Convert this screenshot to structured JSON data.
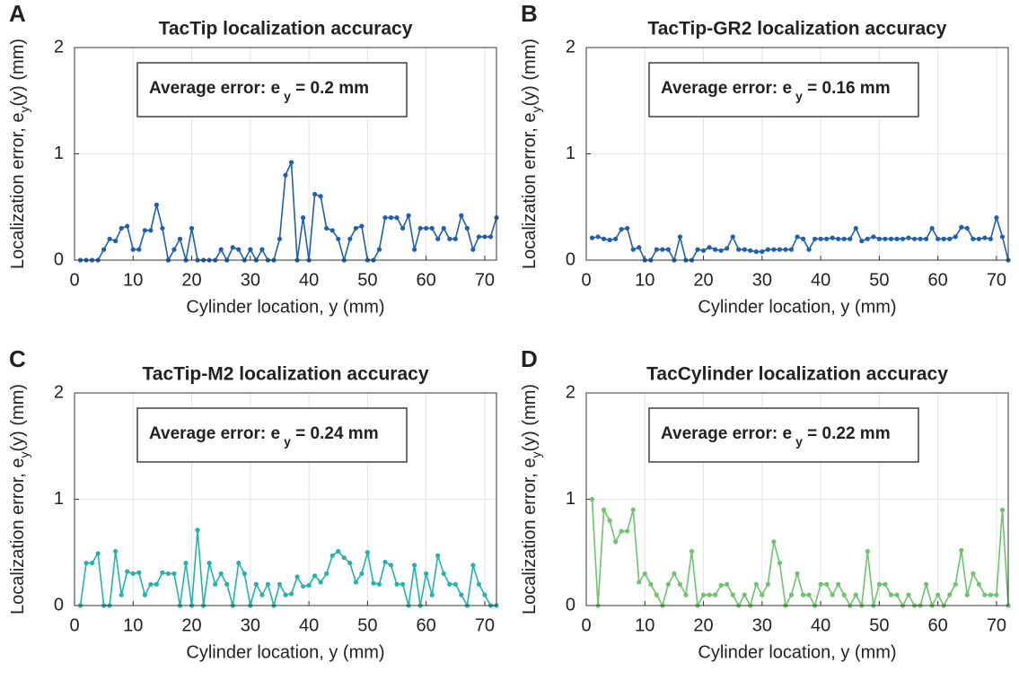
{
  "chart_data": [
    {
      "type": "line",
      "panel_label": "A",
      "title": "TacTip localization accuracy",
      "xlabel": "Cylinder location, y (mm)",
      "ylabel": [
        "Localization error, e",
        "y",
        "(y) (mm)"
      ],
      "annotation": [
        "Average error: e",
        "y",
        " = 0.2 mm"
      ],
      "xlim": [
        0,
        72
      ],
      "ylim": [
        0,
        2
      ],
      "xticks": [
        0,
        10,
        20,
        30,
        40,
        50,
        60,
        70
      ],
      "yticks": [
        0,
        1,
        2
      ],
      "grid": true,
      "x": [
        1,
        2,
        3,
        4,
        5,
        6,
        7,
        8,
        9,
        10,
        11,
        12,
        13,
        14,
        15,
        16,
        17,
        18,
        19,
        20,
        21,
        22,
        23,
        24,
        25,
        26,
        27,
        28,
        29,
        30,
        31,
        32,
        33,
        34,
        35,
        36,
        37,
        38,
        39,
        40,
        41,
        42,
        43,
        44,
        45,
        46,
        47,
        48,
        49,
        50,
        51,
        52,
        53,
        54,
        55,
        56,
        57,
        58,
        59,
        60,
        61,
        62,
        63,
        64,
        65,
        66,
        67,
        68,
        69,
        70,
        71,
        72
      ],
      "series": [
        {
          "color": "#1f5fb0",
          "values": [
            0,
            0,
            0,
            0,
            0.1,
            0.2,
            0.18,
            0.3,
            0.32,
            0.1,
            0.1,
            0.28,
            0.28,
            0.52,
            0.3,
            0,
            0.1,
            0.2,
            0,
            0.3,
            0,
            0,
            0,
            0,
            0.1,
            0,
            0.12,
            0.1,
            0,
            0.1,
            0,
            0.1,
            0,
            0,
            0.2,
            0.8,
            0.92,
            0,
            0.4,
            0,
            0.62,
            0.6,
            0.3,
            0.28,
            0.2,
            0,
            0.2,
            0.3,
            0.32,
            0,
            0,
            0.1,
            0.4,
            0.4,
            0.4,
            0.3,
            0.42,
            0.1,
            0.3,
            0.3,
            0.3,
            0.2,
            0.3,
            0.2,
            0.2,
            0.42,
            0.3,
            0.1,
            0.22,
            0.22,
            0.22,
            0.4
          ]
        }
      ]
    },
    {
      "type": "line",
      "panel_label": "B",
      "title": "TacTip-GR2 localization accuracy",
      "xlabel": "Cylinder location, y (mm)",
      "ylabel": [
        "Localization error, e",
        "y",
        "(y) (mm)"
      ],
      "annotation": [
        "Average error: e",
        "y",
        " = 0.16 mm"
      ],
      "xlim": [
        0,
        72
      ],
      "ylim": [
        0,
        2
      ],
      "xticks": [
        0,
        10,
        20,
        30,
        40,
        50,
        60,
        70
      ],
      "yticks": [
        0,
        1,
        2
      ],
      "grid": true,
      "x": [
        1,
        2,
        3,
        4,
        5,
        6,
        7,
        8,
        9,
        10,
        11,
        12,
        13,
        14,
        15,
        16,
        17,
        18,
        19,
        20,
        21,
        22,
        23,
        24,
        25,
        26,
        27,
        28,
        29,
        30,
        31,
        32,
        33,
        34,
        35,
        36,
        37,
        38,
        39,
        40,
        41,
        42,
        43,
        44,
        45,
        46,
        47,
        48,
        49,
        50,
        51,
        52,
        53,
        54,
        55,
        56,
        57,
        58,
        59,
        60,
        61,
        62,
        63,
        64,
        65,
        66,
        67,
        68,
        69,
        70,
        71,
        72
      ],
      "series": [
        {
          "color": "#1f5fb0",
          "values": [
            0.21,
            0.22,
            0.2,
            0.19,
            0.2,
            0.29,
            0.3,
            0.1,
            0.12,
            0,
            0,
            0.1,
            0.1,
            0.1,
            0,
            0.22,
            0,
            0,
            0.1,
            0.09,
            0.12,
            0.1,
            0.09,
            0.11,
            0.22,
            0.1,
            0.1,
            0.09,
            0.08,
            0.08,
            0.1,
            0.1,
            0.1,
            0.1,
            0.1,
            0.22,
            0.2,
            0.1,
            0.2,
            0.2,
            0.2,
            0.21,
            0.2,
            0.2,
            0.2,
            0.3,
            0.18,
            0.2,
            0.22,
            0.2,
            0.2,
            0.2,
            0.2,
            0.2,
            0.21,
            0.2,
            0.2,
            0.2,
            0.3,
            0.2,
            0.2,
            0.2,
            0.22,
            0.31,
            0.3,
            0.2,
            0.2,
            0.21,
            0.2,
            0.4,
            0.22,
            0
          ]
        }
      ]
    },
    {
      "type": "line",
      "panel_label": "C",
      "title": "TacTip-M2 localization accuracy",
      "xlabel": "Cylinder location, y (mm)",
      "ylabel": [
        "Localization error, e",
        "y",
        "(y) (mm)"
      ],
      "annotation": [
        "Average error: e",
        "y",
        " = 0.24 mm"
      ],
      "xlim": [
        0,
        72
      ],
      "ylim": [
        0,
        2
      ],
      "xticks": [
        0,
        10,
        20,
        30,
        40,
        50,
        60,
        70
      ],
      "yticks": [
        0,
        1,
        2
      ],
      "grid": true,
      "x": [
        1,
        2,
        3,
        4,
        5,
        6,
        7,
        8,
        9,
        10,
        11,
        12,
        13,
        14,
        15,
        16,
        17,
        18,
        19,
        20,
        21,
        22,
        23,
        24,
        25,
        26,
        27,
        28,
        29,
        30,
        31,
        32,
        33,
        34,
        35,
        36,
        37,
        38,
        39,
        40,
        41,
        42,
        43,
        44,
        45,
        46,
        47,
        48,
        49,
        50,
        51,
        52,
        53,
        54,
        55,
        56,
        57,
        58,
        59,
        60,
        61,
        62,
        63,
        64,
        65,
        66,
        67,
        68,
        69,
        70,
        71,
        72
      ],
      "series": [
        {
          "color": "#22b3ad",
          "values": [
            0,
            0.4,
            0.4,
            0.49,
            0,
            0,
            0.51,
            0.1,
            0.32,
            0.3,
            0.31,
            0.1,
            0.2,
            0.2,
            0.31,
            0.3,
            0.3,
            0,
            0.4,
            0,
            0.71,
            0,
            0.4,
            0.2,
            0.3,
            0.2,
            0,
            0.4,
            0.3,
            0,
            0.2,
            0.1,
            0.2,
            0,
            0.2,
            0.1,
            0.11,
            0.27,
            0.18,
            0.19,
            0.28,
            0.22,
            0.3,
            0.47,
            0.51,
            0.45,
            0.4,
            0.22,
            0.3,
            0.5,
            0.21,
            0.2,
            0.41,
            0.38,
            0.2,
            0.2,
            0,
            0.38,
            0,
            0.3,
            0.1,
            0.47,
            0.3,
            0.2,
            0.2,
            0.1,
            0,
            0.38,
            0.2,
            0.1,
            0,
            0
          ]
        }
      ]
    },
    {
      "type": "line",
      "panel_label": "D",
      "title": "TacCylinder localization accuracy",
      "xlabel": "Cylinder location, y (mm)",
      "ylabel": [
        "Localization error, e",
        "y",
        "(y) (mm)"
      ],
      "annotation": [
        "Average error: e",
        "y",
        " = 0.22 mm"
      ],
      "xlim": [
        0,
        72
      ],
      "ylim": [
        0,
        2
      ],
      "xticks": [
        0,
        10,
        20,
        30,
        40,
        50,
        60,
        70
      ],
      "yticks": [
        0,
        1,
        2
      ],
      "grid": true,
      "x": [
        1,
        2,
        3,
        4,
        5,
        6,
        7,
        8,
        9,
        10,
        11,
        12,
        13,
        14,
        15,
        16,
        17,
        18,
        19,
        20,
        21,
        22,
        23,
        24,
        25,
        26,
        27,
        28,
        29,
        30,
        31,
        32,
        33,
        34,
        35,
        36,
        37,
        38,
        39,
        40,
        41,
        42,
        43,
        44,
        45,
        46,
        47,
        48,
        49,
        50,
        51,
        52,
        53,
        54,
        55,
        56,
        57,
        58,
        59,
        60,
        61,
        62,
        63,
        64,
        65,
        66,
        67,
        68,
        69,
        70,
        71,
        72
      ],
      "series": [
        {
          "color": "#6cc46c",
          "values": [
            1,
            0,
            0.9,
            0.8,
            0.6,
            0.7,
            0.7,
            0.9,
            0.22,
            0.3,
            0.2,
            0.1,
            0,
            0.2,
            0.3,
            0.2,
            0.1,
            0.51,
            0,
            0.1,
            0.1,
            0.1,
            0.19,
            0.2,
            0.1,
            0,
            0.1,
            0,
            0.2,
            0.1,
            0.2,
            0.6,
            0.4,
            0,
            0.1,
            0.3,
            0.1,
            0.1,
            0,
            0.2,
            0.2,
            0.1,
            0.2,
            0.1,
            0,
            0.1,
            0,
            0.51,
            0,
            0.2,
            0.2,
            0.1,
            0.1,
            0,
            0.1,
            0,
            0,
            0.2,
            0,
            0.1,
            0,
            0.1,
            0.2,
            0.52,
            0.1,
            0.3,
            0.2,
            0.1,
            0.1,
            0.1,
            0.9,
            0
          ]
        }
      ]
    }
  ]
}
